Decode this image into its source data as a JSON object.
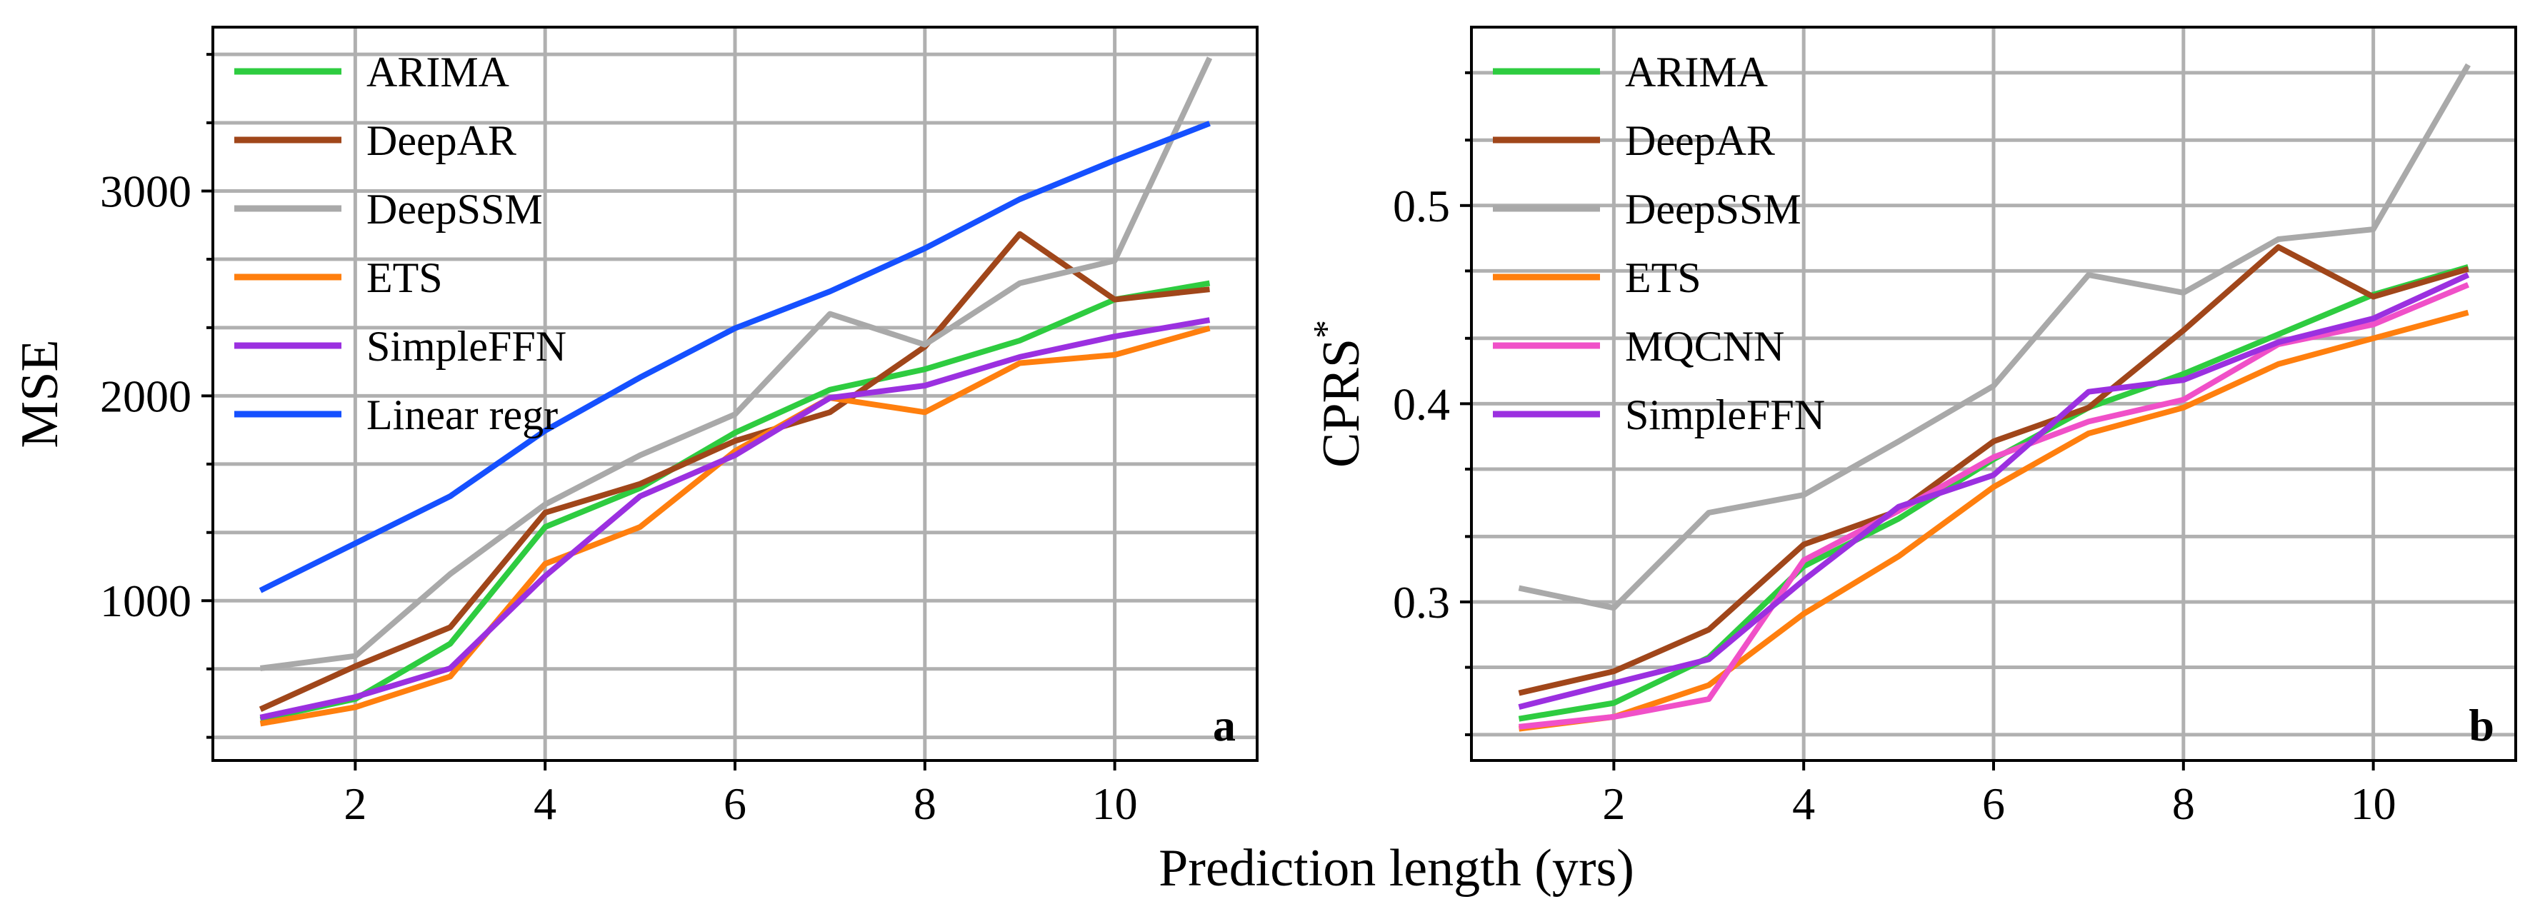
{
  "xlabel": "Prediction length (yrs)",
  "colors": {
    "ARIMA": "#2ecc40",
    "DeepAR": "#a0461a",
    "DeepSSM": "#a9a9a9",
    "ETS": "#ff7f0e",
    "SimpleFFN": "#9b30e0",
    "Linear regr": "#1550ff",
    "MQCNN": "#f050c8"
  },
  "chart_data": [
    {
      "type": "line",
      "panel_label": "a",
      "ylabel": "MSE",
      "x": [
        1,
        2,
        3,
        4,
        5,
        6,
        7,
        8,
        9,
        10,
        11
      ],
      "xlim": [
        0.5,
        11.5
      ],
      "xticks": [
        2,
        4,
        6,
        8,
        10
      ],
      "ylim": [
        220,
        3800
      ],
      "yticks": [
        1000,
        2000,
        3000
      ],
      "yminor": [
        333,
        667,
        1333,
        1667,
        2333,
        2667,
        3333,
        3667
      ],
      "grid": true,
      "legend_position": "top-left",
      "series": [
        {
          "name": "ARIMA",
          "values": [
            420,
            520,
            790,
            1360,
            1550,
            1820,
            2030,
            2130,
            2270,
            2470,
            2550
          ]
        },
        {
          "name": "DeepAR",
          "values": [
            470,
            680,
            870,
            1430,
            1570,
            1780,
            1920,
            2240,
            2790,
            2470,
            2520
          ]
        },
        {
          "name": "DeepSSM",
          "values": [
            670,
            730,
            1130,
            1470,
            1710,
            1910,
            2400,
            2250,
            2550,
            2660,
            3650
          ]
        },
        {
          "name": "ETS",
          "values": [
            400,
            480,
            630,
            1180,
            1360,
            1730,
            1990,
            1920,
            2160,
            2200,
            2330
          ]
        },
        {
          "name": "SimpleFFN",
          "values": [
            430,
            530,
            670,
            1120,
            1510,
            1710,
            1990,
            2050,
            2190,
            2290,
            2370
          ]
        },
        {
          "name": "Linear regr",
          "values": [
            1050,
            1280,
            1510,
            1830,
            2090,
            2330,
            2510,
            2720,
            2960,
            3150,
            3330
          ]
        }
      ]
    },
    {
      "type": "line",
      "panel_label": "b",
      "ylabel": "CPRS",
      "ylabel_superscript": "*",
      "x": [
        1,
        2,
        3,
        4,
        5,
        6,
        7,
        8,
        9,
        10,
        11
      ],
      "xlim": [
        0.5,
        11.5
      ],
      "xticks": [
        2,
        4,
        6,
        8,
        10
      ],
      "ylim": [
        0.22,
        0.59
      ],
      "yticks": [
        0.3,
        0.4,
        0.5
      ],
      "ytick_labels": [
        "0.3",
        "0.4",
        "0.5"
      ],
      "yminor": [
        0.233,
        0.267,
        0.333,
        0.367,
        0.433,
        0.467,
        0.533,
        0.567
      ],
      "grid": true,
      "legend_position": "top-left",
      "series": [
        {
          "name": "ARIMA",
          "values": [
            0.241,
            0.249,
            0.272,
            0.318,
            0.342,
            0.372,
            0.398,
            0.415,
            0.435,
            0.455,
            0.469
          ]
        },
        {
          "name": "DeepAR",
          "values": [
            0.254,
            0.265,
            0.286,
            0.329,
            0.346,
            0.381,
            0.398,
            0.437,
            0.479,
            0.454,
            0.468
          ]
        },
        {
          "name": "DeepSSM",
          "values": [
            0.307,
            0.297,
            0.345,
            0.354,
            0.381,
            0.409,
            0.465,
            0.456,
            0.483,
            0.488,
            0.571
          ]
        },
        {
          "name": "ETS",
          "values": [
            0.236,
            0.242,
            0.258,
            0.294,
            0.323,
            0.358,
            0.385,
            0.398,
            0.42,
            0.433,
            0.446
          ]
        },
        {
          "name": "MQCNN",
          "values": [
            0.237,
            0.242,
            0.251,
            0.321,
            0.346,
            0.373,
            0.391,
            0.402,
            0.43,
            0.44,
            0.46
          ]
        },
        {
          "name": "SimpleFFN",
          "values": [
            0.247,
            0.259,
            0.271,
            0.311,
            0.348,
            0.364,
            0.406,
            0.412,
            0.431,
            0.443,
            0.465
          ]
        }
      ]
    }
  ]
}
